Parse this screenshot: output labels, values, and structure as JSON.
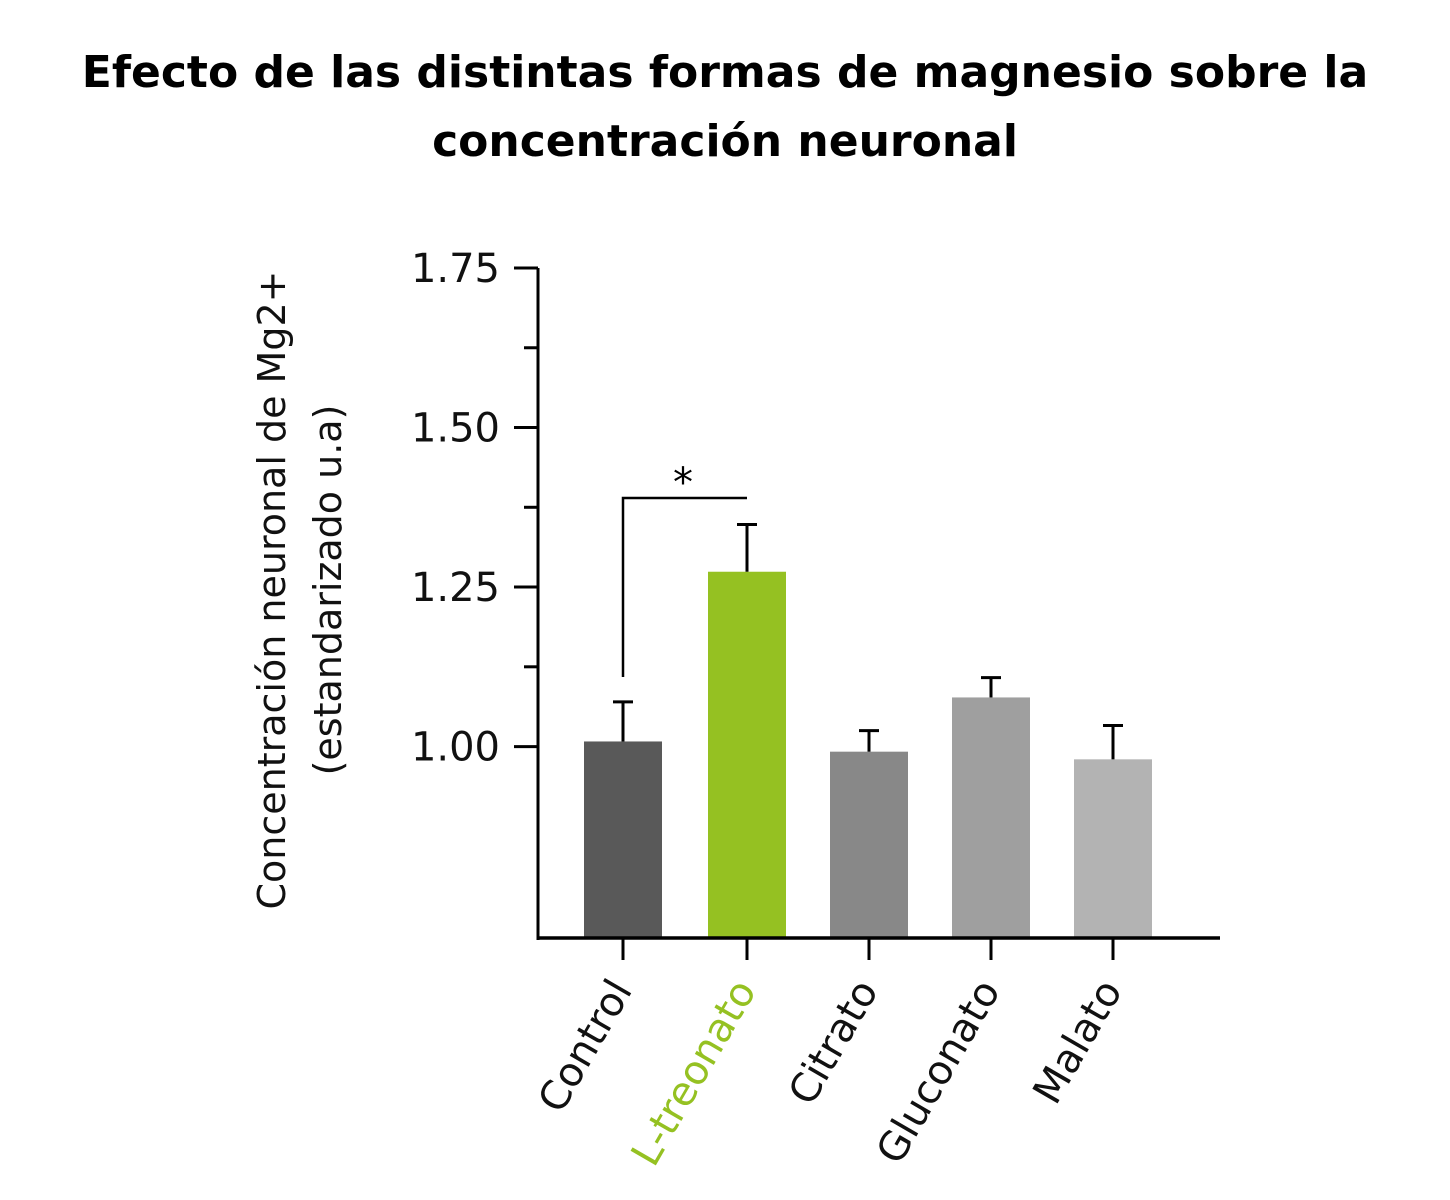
{
  "chart_data": {
    "type": "bar",
    "title_lines": [
      "Efecto de las distintas formas de magnesio sobre la",
      "concentración neuronal"
    ],
    "ylabel_lines": [
      "Concentración neuronal de  Mg2+",
      "(estandarizado u.a)"
    ],
    "xlabel": "",
    "categories": [
      "Control",
      "L-treonato",
      "Citrato",
      "Gluconato",
      "Malato"
    ],
    "values": [
      1.008,
      1.274,
      0.992,
      1.077,
      0.98
    ],
    "error_upper": [
      1.07,
      1.348,
      1.025,
      1.108,
      1.033
    ],
    "colors": [
      "#595959",
      "#95c122",
      "#888888",
      "#9f9f9f",
      "#b3b3b3"
    ],
    "label_colors": [
      "#111111",
      "#95c122",
      "#111111",
      "#111111",
      "#111111"
    ],
    "ylim": [
      0.7,
      1.75
    ],
    "yticks": [
      1.0,
      1.25,
      1.5,
      1.75
    ],
    "ytick_labels": [
      "1.00",
      "1.25",
      "1.50",
      "1.75"
    ],
    "minor_yticks": [
      1.125,
      1.375,
      1.625
    ],
    "grid": false,
    "significance": {
      "from": "Control",
      "to": "L-treonato",
      "label": "*"
    }
  }
}
